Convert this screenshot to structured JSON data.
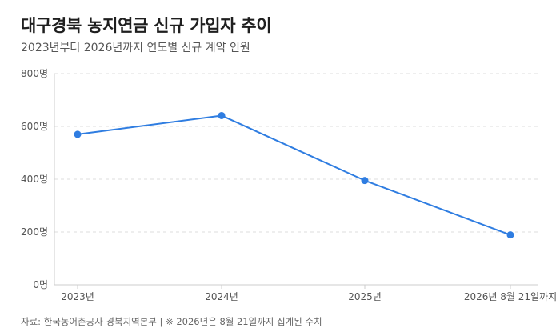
{
  "header": {
    "title": "대구경북 농지연금 신규 가입자 추이",
    "subtitle": "2023년부터 2026년까지 연도별 신규 계약 인원"
  },
  "footer": {
    "source": "자료: 한국농어촌공사 경북지역본부 | ※ 2026년은 8월 21일까지 집계된 수치"
  },
  "colors": {
    "line": "#2f7de1",
    "grid": "#dddddd",
    "axis": "#cccccc",
    "text": "#555555"
  },
  "chart_data": {
    "type": "line",
    "categories": [
      "2023년",
      "2024년",
      "2025년",
      "2026년 8월 21일까지"
    ],
    "series": [
      {
        "values": [
          570,
          641,
          395,
          189
        ]
      }
    ],
    "yticks": [
      {
        "value": 0,
        "label": "0명"
      },
      {
        "value": 200,
        "label": "200명"
      },
      {
        "value": 400,
        "label": "400명"
      },
      {
        "value": 600,
        "label": "600명"
      },
      {
        "value": 800,
        "label": "800명"
      }
    ],
    "ylim": [
      0,
      800
    ],
    "xlabel": "",
    "ylabel": "",
    "grid": true,
    "legend": "none"
  }
}
